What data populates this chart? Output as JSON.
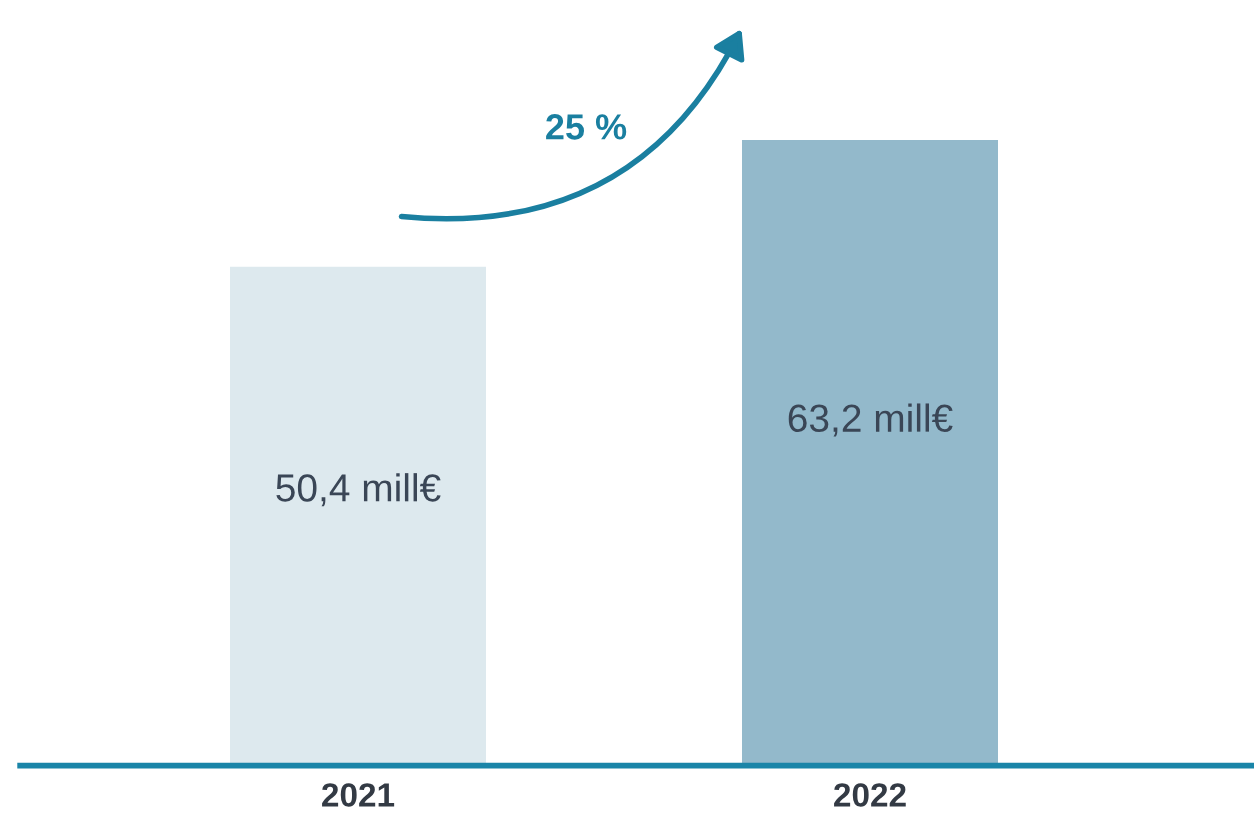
{
  "chart_data": {
    "type": "bar",
    "categories": [
      "2021",
      "2022"
    ],
    "values": [
      50.4,
      63.2
    ],
    "value_labels": [
      "50,4 mill€",
      "63,2 mill€"
    ],
    "colors": [
      "#dde9ee",
      "#93b9cb"
    ],
    "tick_labels": "x",
    "annotations": [
      "25 %"
    ],
    "grid": false,
    "legend": false
  }
}
